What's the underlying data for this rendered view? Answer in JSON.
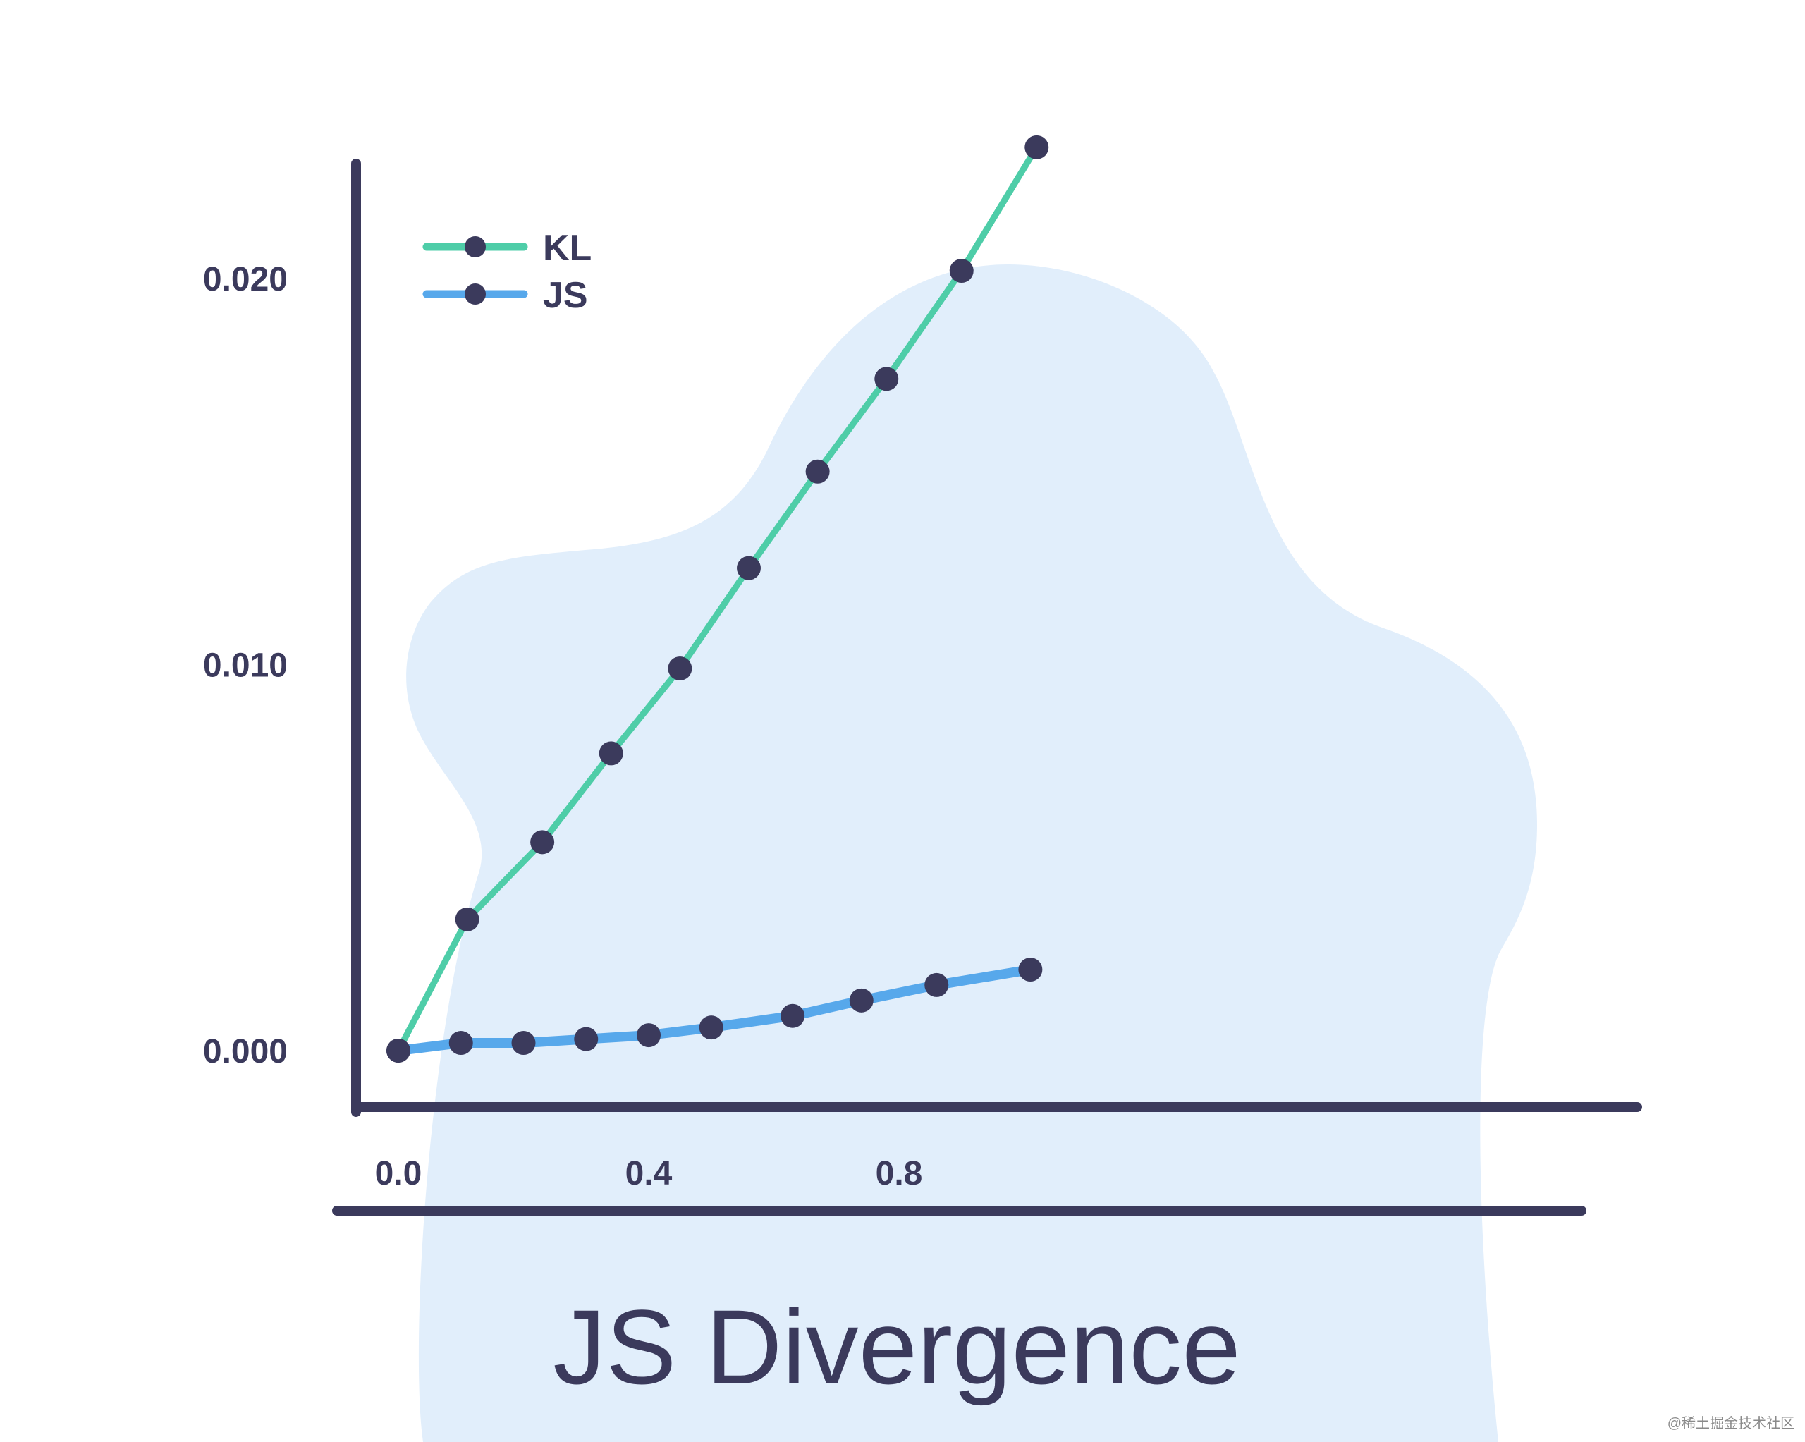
{
  "colors": {
    "background": "#ffffff",
    "blob": "#e1eefb",
    "axis": "#3b3a5c",
    "text": "#3b3a5c",
    "point": "#3b3a5c",
    "kl": "#4ecda8",
    "js": "#57a8eb",
    "watermark": "#8a8a8a"
  },
  "chart_data": {
    "type": "line",
    "title": "JS Divergence",
    "xlabel": "",
    "ylabel": "",
    "xlim": [
      0.0,
      1.05
    ],
    "ylim": [
      0.0,
      0.02
    ],
    "x_ticks": [
      0.0,
      0.4,
      0.8
    ],
    "x_tick_labels": [
      "0.0",
      "0.4",
      "0.8"
    ],
    "y_ticks": [
      0.0,
      0.01,
      0.02
    ],
    "y_tick_labels": [
      "0.000",
      "0.010",
      "0.020"
    ],
    "legend_position": "top-left",
    "grid": false,
    "series": [
      {
        "name": "KL",
        "color": "#4ecda8",
        "x": [
          0.0,
          0.11,
          0.23,
          0.34,
          0.45,
          0.56,
          0.67,
          0.78,
          0.9,
          1.02
        ],
        "y": [
          0.0,
          0.0034,
          0.0054,
          0.0077,
          0.0099,
          0.0125,
          0.015,
          0.0174,
          0.0202,
          0.0234
        ]
      },
      {
        "name": "JS",
        "color": "#57a8eb",
        "x": [
          0.0,
          0.1,
          0.2,
          0.3,
          0.4,
          0.5,
          0.63,
          0.74,
          0.86,
          1.01
        ],
        "y": [
          0.0,
          0.0002,
          0.0002,
          0.0003,
          0.0004,
          0.0006,
          0.0009,
          0.0013,
          0.0017,
          0.0021
        ]
      }
    ]
  },
  "watermark": "@稀土掘金技术社区"
}
